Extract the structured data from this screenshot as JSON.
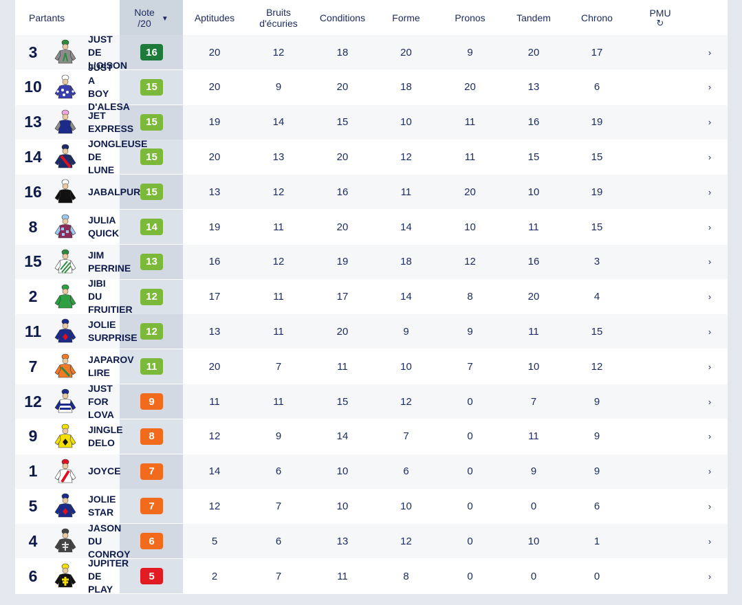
{
  "header": {
    "partants": "Partants",
    "note_line1": "Note",
    "note_line2": "/20",
    "sort_icon": "▼",
    "aptitudes": "Aptitudes",
    "bruits_line1": "Bruits",
    "bruits_line2": "d'écuries",
    "conditions": "Conditions",
    "forme": "Forme",
    "pronos": "Pronos",
    "tandem": "Tandem",
    "chrono": "Chrono",
    "pmu": "PMU",
    "refresh_icon": "↻"
  },
  "chevron": "›",
  "badge_colors": {
    "dark_green": "#1e7b3b",
    "green": "#7cb93a",
    "orange": "#f26b1d",
    "red": "#e21b23"
  },
  "rows": [
    {
      "num": "3",
      "name": "JUST DE L'OISON",
      "note": "16",
      "badge": "dark_green",
      "silk": "grey-green",
      "aptitudes": "20",
      "bruits": "12",
      "conditions": "18",
      "forme": "20",
      "pronos": "9",
      "tandem": "20",
      "chrono": "17"
    },
    {
      "num": "10",
      "name": "JUST A BOY D'ALESA",
      "note": "15",
      "badge": "green",
      "silk": "blue-stars",
      "aptitudes": "20",
      "bruits": "9",
      "conditions": "20",
      "forme": "18",
      "pronos": "20",
      "tandem": "13",
      "chrono": "6"
    },
    {
      "num": "13",
      "name": "JET EXPRESS",
      "note": "15",
      "badge": "green",
      "silk": "navy-grey",
      "aptitudes": "19",
      "bruits": "14",
      "conditions": "15",
      "forme": "10",
      "pronos": "11",
      "tandem": "16",
      "chrono": "19"
    },
    {
      "num": "14",
      "name": "JONGLEUSE DE LUNE",
      "note": "15",
      "badge": "green",
      "silk": "navy-red-sash",
      "aptitudes": "20",
      "bruits": "13",
      "conditions": "20",
      "forme": "12",
      "pronos": "11",
      "tandem": "15",
      "chrono": "15"
    },
    {
      "num": "16",
      "name": "JABALPUR",
      "note": "15",
      "badge": "green",
      "silk": "black",
      "aptitudes": "13",
      "bruits": "12",
      "conditions": "16",
      "forme": "11",
      "pronos": "20",
      "tandem": "10",
      "chrono": "19"
    },
    {
      "num": "8",
      "name": "JULIA QUICK",
      "note": "14",
      "badge": "green",
      "silk": "blue-check",
      "aptitudes": "19",
      "bruits": "11",
      "conditions": "20",
      "forme": "14",
      "pronos": "10",
      "tandem": "11",
      "chrono": "15"
    },
    {
      "num": "15",
      "name": "JIM PERRINE",
      "note": "13",
      "badge": "green",
      "silk": "green-stripes",
      "aptitudes": "16",
      "bruits": "12",
      "conditions": "19",
      "forme": "18",
      "pronos": "12",
      "tandem": "16",
      "chrono": "3"
    },
    {
      "num": "2",
      "name": "JIBI DU FRUITIER",
      "note": "12",
      "badge": "green",
      "silk": "green",
      "aptitudes": "17",
      "bruits": "11",
      "conditions": "17",
      "forme": "14",
      "pronos": "8",
      "tandem": "20",
      "chrono": "4"
    },
    {
      "num": "11",
      "name": "JOLIE SURPRISE",
      "note": "12",
      "badge": "green",
      "silk": "navy-red-diamond",
      "aptitudes": "13",
      "bruits": "11",
      "conditions": "20",
      "forme": "9",
      "pronos": "9",
      "tandem": "11",
      "chrono": "15"
    },
    {
      "num": "7",
      "name": "JAPAROV LIRE",
      "note": "11",
      "badge": "green",
      "silk": "orange-green",
      "aptitudes": "20",
      "bruits": "7",
      "conditions": "11",
      "forme": "10",
      "pronos": "7",
      "tandem": "10",
      "chrono": "12"
    },
    {
      "num": "12",
      "name": "JUST FOR LOVA",
      "note": "9",
      "badge": "orange",
      "silk": "white-navy-hoops",
      "aptitudes": "11",
      "bruits": "11",
      "conditions": "15",
      "forme": "12",
      "pronos": "0",
      "tandem": "7",
      "chrono": "9"
    },
    {
      "num": "9",
      "name": "JINGLE DELO",
      "note": "8",
      "badge": "orange",
      "silk": "yellow-diamond",
      "aptitudes": "12",
      "bruits": "9",
      "conditions": "14",
      "forme": "7",
      "pronos": "0",
      "tandem": "11",
      "chrono": "9"
    },
    {
      "num": "1",
      "name": "JOYCE",
      "note": "7",
      "badge": "orange",
      "silk": "white-red-sash",
      "aptitudes": "14",
      "bruits": "6",
      "conditions": "10",
      "forme": "6",
      "pronos": "0",
      "tandem": "9",
      "chrono": "9"
    },
    {
      "num": "5",
      "name": "JOLIE STAR",
      "note": "7",
      "badge": "orange",
      "silk": "navy-red-diamond",
      "aptitudes": "12",
      "bruits": "7",
      "conditions": "10",
      "forme": "10",
      "pronos": "0",
      "tandem": "0",
      "chrono": "6"
    },
    {
      "num": "4",
      "name": "JASON DU CONROY",
      "note": "6",
      "badge": "orange",
      "silk": "black-cross",
      "aptitudes": "5",
      "bruits": "6",
      "conditions": "13",
      "forme": "12",
      "pronos": "0",
      "tandem": "10",
      "chrono": "1"
    },
    {
      "num": "6",
      "name": "JUPITER DE PLAY",
      "note": "5",
      "badge": "red",
      "silk": "black-yellow-cross",
      "aptitudes": "2",
      "bruits": "7",
      "conditions": "11",
      "forme": "8",
      "pronos": "0",
      "tandem": "0",
      "chrono": "0"
    }
  ]
}
